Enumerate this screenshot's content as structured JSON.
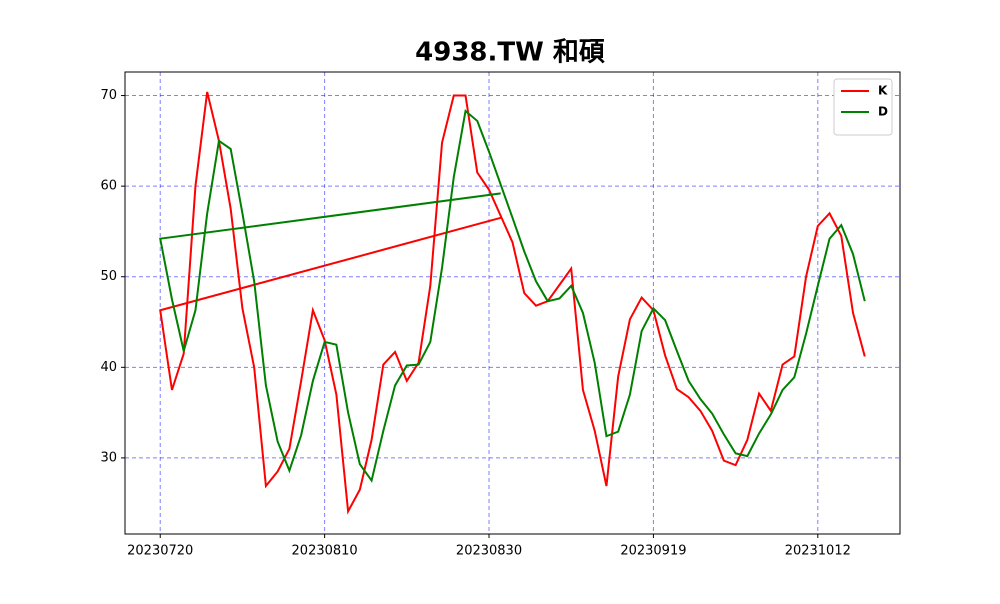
{
  "chart_data": {
    "type": "line",
    "title": "4938.TW 和碩",
    "x": [
      29,
      0,
      1,
      2,
      3,
      4,
      5,
      6,
      7,
      8,
      9,
      10,
      11,
      12,
      13,
      14,
      15,
      16,
      17,
      18,
      19,
      20,
      21,
      22,
      23,
      24,
      25,
      26,
      27,
      28,
      30,
      31,
      32,
      33,
      34,
      35,
      36,
      37,
      38,
      39,
      40,
      41,
      42,
      43,
      44,
      45,
      46,
      47,
      48,
      49,
      50,
      51,
      52,
      53,
      54,
      55,
      56,
      57,
      58,
      59,
      60
    ],
    "series": [
      {
        "name": "K",
        "color": "#ff0000",
        "values": [
          56.5,
          46.3,
          37.5,
          41.5,
          60,
          70.4,
          65,
          57.5,
          46.5,
          40,
          26.9,
          28.5,
          31,
          38.5,
          46.3,
          43,
          37,
          24.1,
          26.5,
          32,
          40.3,
          41.7,
          38.5,
          40.5,
          49,
          64.8,
          70,
          70,
          61.5,
          59.6,
          53.8,
          48.2,
          46.8,
          47.3,
          49.1,
          50.9,
          37.5,
          33,
          26.9,
          39,
          45.3,
          47.7,
          46.3,
          41.3,
          37.6,
          36.7,
          35.2,
          33,
          29.7,
          29.2,
          32,
          37.1,
          35.2,
          40.3,
          41.2,
          50,
          55.6,
          57,
          54.5,
          46,
          41.2
        ]
      },
      {
        "name": "D",
        "color": "#008000",
        "values": [
          59.2,
          54.2,
          47.5,
          41.8,
          46.3,
          57,
          65,
          64.1,
          57,
          49.5,
          38,
          31.8,
          28.6,
          32.5,
          38.5,
          42.8,
          42.5,
          35,
          29.3,
          27.5,
          33,
          38,
          40.2,
          40.3,
          42.8,
          51,
          61,
          68.3,
          67.2,
          63.8,
          56.5,
          52.8,
          49.5,
          47.3,
          47.6,
          49,
          46,
          40.5,
          32.4,
          32.9,
          37,
          44,
          46.5,
          45.2,
          41.8,
          38.5,
          36.5,
          34.9,
          32.6,
          30.5,
          30.2,
          32.7,
          34.8,
          37.5,
          38.9,
          43.7,
          49,
          54.2,
          55.7,
          52.5,
          47.3
        ]
      }
    ],
    "xlim": [
      -3,
      63
    ],
    "xticks": [
      {
        "value": 0,
        "label": "20230720"
      },
      {
        "value": 14,
        "label": "20230810"
      },
      {
        "value": 28,
        "label": "20230830"
      },
      {
        "value": 42,
        "label": "20230919"
      },
      {
        "value": 56,
        "label": "20231012"
      }
    ],
    "ylim": [
      21.6,
      72.6
    ],
    "yticks": [
      30,
      40,
      50,
      60,
      70
    ],
    "grid": true,
    "legend": "upper-right"
  }
}
